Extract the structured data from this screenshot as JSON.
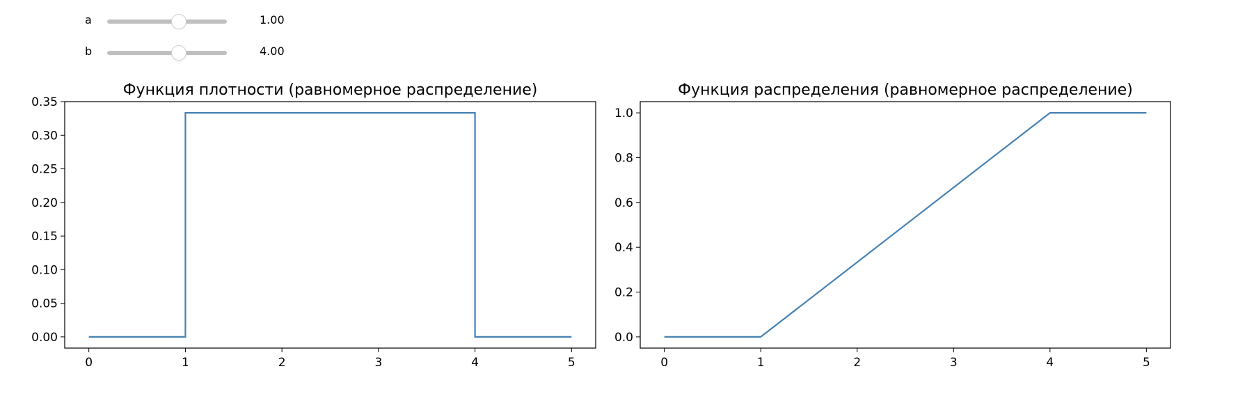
{
  "sliders": [
    {
      "label": "a",
      "value": 1.0,
      "value_text": "1.00",
      "min": -5,
      "max": 5
    },
    {
      "label": "b",
      "value": 4.0,
      "value_text": "4.00",
      "min": -5,
      "max": 10
    }
  ],
  "colors": {
    "line": "#4682b4",
    "axes": "#000000",
    "track": "#c0c0c0"
  },
  "chart_data": [
    {
      "type": "line",
      "title": "Функция плотности (равномерное распределение)",
      "xlabel": "",
      "ylabel": "",
      "xlim": [
        -0.25,
        5.25
      ],
      "ylim": [
        -0.0167,
        0.35
      ],
      "xticks": [
        0,
        1,
        2,
        3,
        4,
        5
      ],
      "xtick_labels": [
        "0",
        "1",
        "2",
        "3",
        "4",
        "5"
      ],
      "yticks": [
        0.0,
        0.05,
        0.1,
        0.15,
        0.2,
        0.25,
        0.3,
        0.35
      ],
      "ytick_labels": [
        "0.00",
        "0.05",
        "0.10",
        "0.15",
        "0.20",
        "0.25",
        "0.30",
        "0.35"
      ],
      "grid": false,
      "series": [
        {
          "x": [
            0,
            1,
            1,
            4,
            4,
            5
          ],
          "y": [
            0,
            0,
            0.3333,
            0.3333,
            0,
            0
          ]
        }
      ]
    },
    {
      "type": "line",
      "title": "Функция распределения (равномерное распределение)",
      "xlabel": "",
      "ylabel": "",
      "xlim": [
        -0.25,
        5.25
      ],
      "ylim": [
        -0.05,
        1.05
      ],
      "xticks": [
        0,
        1,
        2,
        3,
        4,
        5
      ],
      "xtick_labels": [
        "0",
        "1",
        "2",
        "3",
        "4",
        "5"
      ],
      "yticks": [
        0.0,
        0.2,
        0.4,
        0.6,
        0.8,
        1.0
      ],
      "ytick_labels": [
        "0.0",
        "0.2",
        "0.4",
        "0.6",
        "0.8",
        "1.0"
      ],
      "grid": false,
      "series": [
        {
          "x": [
            0,
            1,
            4,
            5
          ],
          "y": [
            0,
            0,
            1,
            1
          ]
        }
      ]
    }
  ]
}
